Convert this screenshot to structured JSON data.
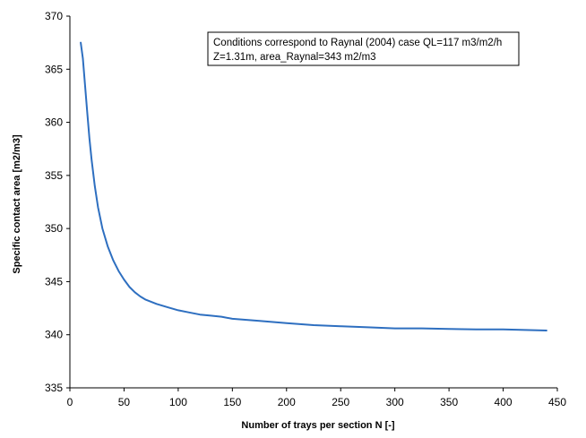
{
  "chart_data": {
    "type": "line",
    "title": "",
    "xlabel": "Number of trays per section N [-]",
    "ylabel": "Specific contact area [m2/m3]",
    "xlim": [
      0,
      450
    ],
    "ylim": [
      335,
      370
    ],
    "xticks": [
      0,
      50,
      100,
      150,
      200,
      250,
      300,
      350,
      400,
      450
    ],
    "yticks": [
      335,
      340,
      345,
      350,
      355,
      360,
      365,
      370
    ],
    "grid": false,
    "legend": "none",
    "annotation": {
      "lines": [
        "Conditions correspond to Raynal (2004) case QL=117 m3/m2/h",
        "Z=1.31m, area_Raynal=343 m2/m3"
      ],
      "placement": "top-right"
    },
    "series": [
      {
        "color": "#2e6fc0",
        "x": [
          10,
          12,
          14,
          16,
          18,
          20,
          23,
          26,
          30,
          35,
          40,
          45,
          50,
          55,
          60,
          65,
          70,
          80,
          90,
          100,
          110,
          120,
          130,
          140,
          150,
          175,
          200,
          225,
          250,
          275,
          300,
          325,
          350,
          375,
          400,
          420,
          440
        ],
        "y": [
          367.5,
          366.0,
          363.5,
          361.0,
          358.5,
          356.5,
          354.0,
          352.0,
          350.0,
          348.3,
          347.0,
          346.0,
          345.2,
          344.5,
          344.0,
          343.6,
          343.3,
          342.9,
          342.6,
          342.3,
          342.1,
          341.9,
          341.8,
          341.7,
          341.5,
          341.3,
          341.1,
          340.9,
          340.8,
          340.7,
          340.6,
          340.6,
          340.55,
          340.5,
          340.5,
          340.45,
          340.4
        ]
      }
    ]
  }
}
